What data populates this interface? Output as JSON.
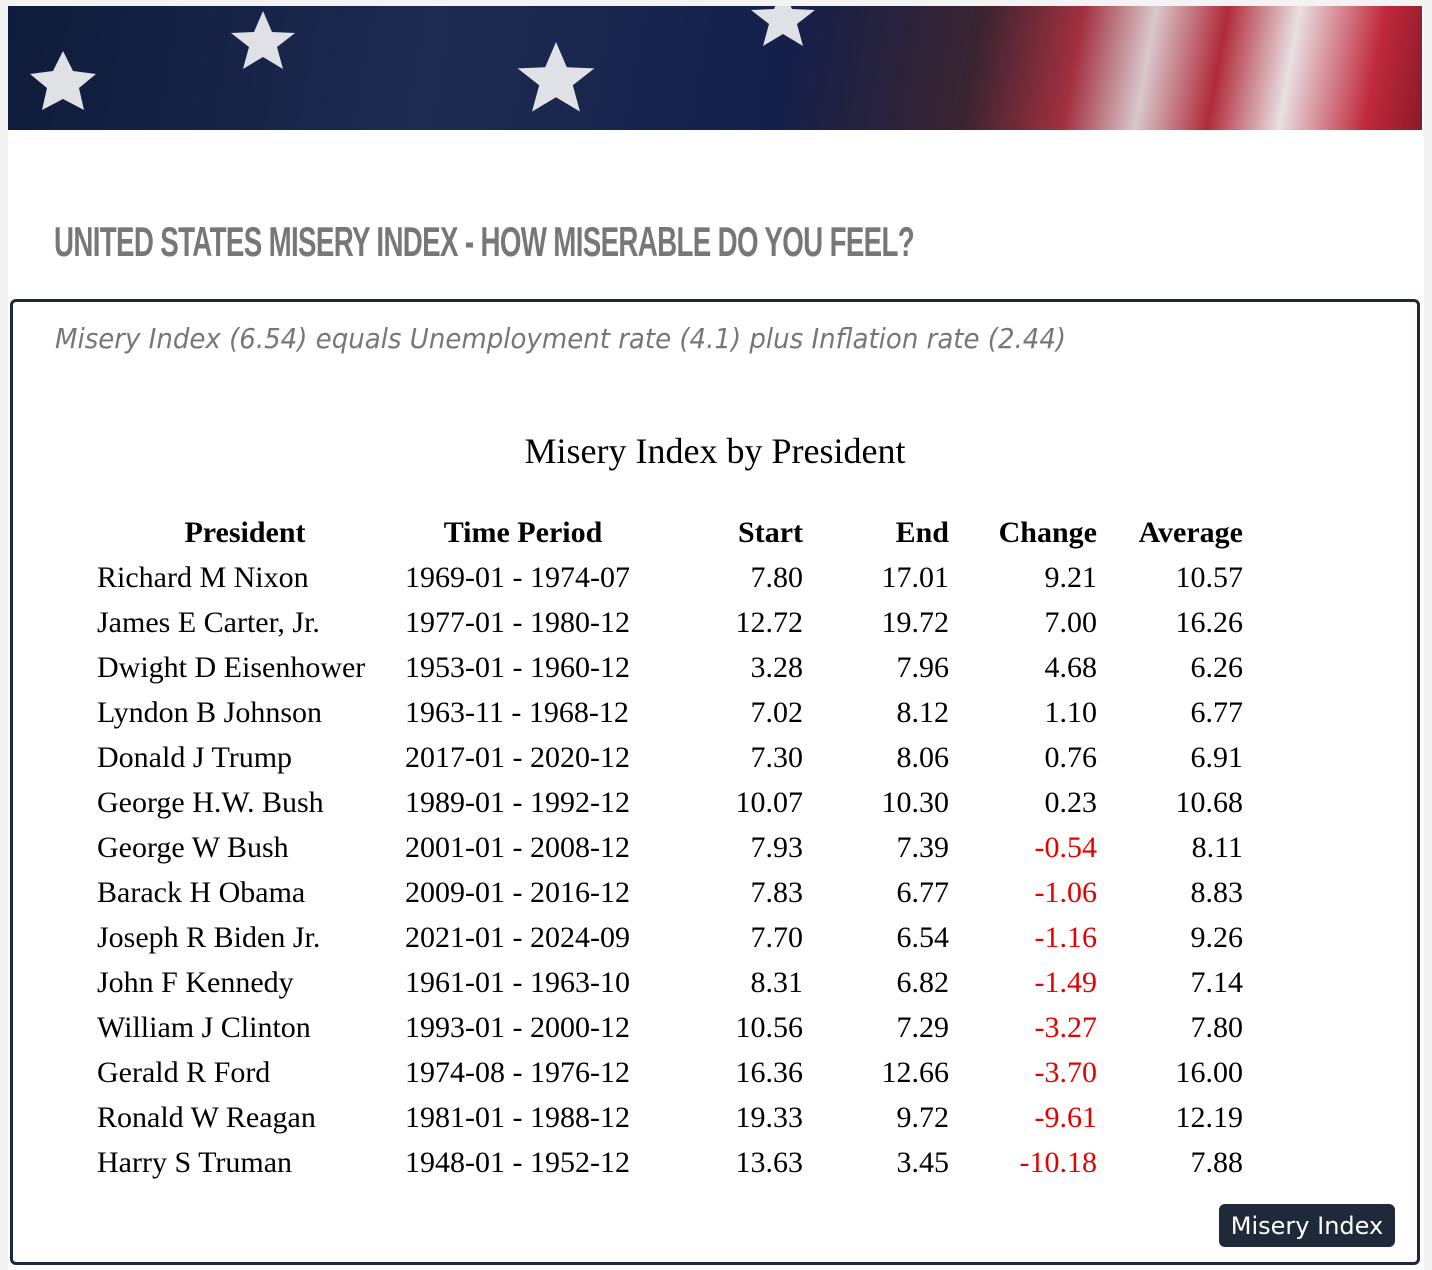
{
  "header": {
    "title": "UNITED STATES MISERY INDEX - HOW MISERABLE DO YOU FEEL?",
    "subtitle": "Misery Index (6.54) equals Unemployment rate (4.1) plus Inflation rate (2.44)"
  },
  "table": {
    "title": "Misery Index by President",
    "columns": [
      "President",
      "Time Period",
      "Start",
      "End",
      "Change",
      "Average"
    ],
    "rows": [
      [
        "Richard M Nixon",
        "1969-01 - 1974-07",
        "7.80",
        "17.01",
        "9.21",
        "10.57"
      ],
      [
        "James E Carter, Jr.",
        "1977-01 - 1980-12",
        "12.72",
        "19.72",
        "7.00",
        "16.26"
      ],
      [
        "Dwight D Eisenhower",
        "1953-01 - 1960-12",
        "3.28",
        "7.96",
        "4.68",
        "6.26"
      ],
      [
        "Lyndon B Johnson",
        "1963-11 - 1968-12",
        "7.02",
        "8.12",
        "1.10",
        "6.77"
      ],
      [
        "Donald J Trump",
        "2017-01 - 2020-12",
        "7.30",
        "8.06",
        "0.76",
        "6.91"
      ],
      [
        "George H.W. Bush",
        "1989-01 - 1992-12",
        "10.07",
        "10.30",
        "0.23",
        "10.68"
      ],
      [
        "George W Bush",
        "2001-01 - 2008-12",
        "7.93",
        "7.39",
        "-0.54",
        "8.11"
      ],
      [
        "Barack H Obama",
        "2009-01 - 2016-12",
        "7.83",
        "6.77",
        "-1.06",
        "8.83"
      ],
      [
        "Joseph R Biden Jr.",
        "2021-01 - 2024-09",
        "7.70",
        "6.54",
        "-1.16",
        "9.26"
      ],
      [
        "John F Kennedy",
        "1961-01 - 1963-10",
        "8.31",
        "6.82",
        "-1.49",
        "7.14"
      ],
      [
        "William J Clinton",
        "1993-01 - 2000-12",
        "10.56",
        "7.29",
        "-3.27",
        "7.80"
      ],
      [
        "Gerald R Ford",
        "1974-08 - 1976-12",
        "16.36",
        "12.66",
        "-3.70",
        "16.00"
      ],
      [
        "Ronald W Reagan",
        "1981-01 - 1988-12",
        "19.33",
        "9.72",
        "-9.61",
        "12.19"
      ],
      [
        "Harry S Truman",
        "1948-01 - 1952-12",
        "13.63",
        "3.45",
        "-10.18",
        "7.88"
      ]
    ],
    "negative_color": "#e60000"
  },
  "button": {
    "label": "Misery Index"
  }
}
